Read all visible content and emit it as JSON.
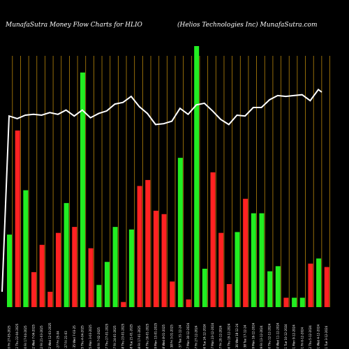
{
  "header": {
    "left": "MunafaSutra  Money Flow  Charts for HLIO",
    "right": "(Helios Technologies Inc) MunafaSutra.com"
  },
  "chart_data": {
    "type": "bar",
    "title": "MunafaSutra  Money Flow  Charts for HLIO",
    "subtitle": "(Helios Technologies Inc) MunafaSutra.com",
    "colors": {
      "up": "#22ee22",
      "down": "#ff2222",
      "line": "#ffffff",
      "grid": "#b8860b",
      "background": "#000000"
    },
    "categories": [
      "20 Fri 27-05-2025",
      "22 Thu 22-04-2025",
      "30 Fri 17-04-2025",
      "32 Wed 7-04-2025",
      "32 Fri 21-03-2025",
      "32 Wed 12-03-2025",
      "6 27 Fri 25-04",
      "6 27 Fri 21-03",
      "6 35 Wed 7-03-25",
      "35 Thu 4-04-2025",
      "35 Mon 3-03-2025",
      "36 Fri 7-02-2025",
      "37 Thu 27-01-2025",
      "37 Fri 24-01-2025",
      "38 Thu 23-01-2025",
      "38 Tue 21-01-2025",
      "38 Fri 17-01-2025",
      "38 Thu 16-01-2025",
      "39 Mon 13-01-2025",
      "38 Wed 8-01-2025",
      "6 38 Fri 3-01-2025",
      "6 37 Tue 31-12-24",
      "37 Mon 30-12-2024",
      "37 Fri 27-12-2024",
      "36 Tue 24-12-2024",
      "37 Mon 23-12-2024",
      "37 Fri 20-12-2024",
      "36 Thu 19-12-2024",
      "6 36 Wed 18-12-24",
      "6 38 Tue 17-12-24",
      "39 Mon 16-12-2024",
      "39 Fri 13-12-2024",
      "40 Thu 12-12-2024",
      "40 Wed 11-12-2024",
      "41 Tue 10-12-2024",
      "41 Mon 9-12-2024",
      "41 Fri 6-12-2024",
      "42 Thu 5-12-2024",
      "41 Wed 4-12-2024",
      "41 Tue 3-12-2024"
    ],
    "series": [
      {
        "values": [
          85,
          207,
          137,
          41,
          73,
          18,
          87,
          122,
          94,
          275,
          69,
          26,
          53,
          94,
          6,
          91,
          142,
          149,
          113,
          109,
          30,
          175,
          9,
          306,
          45,
          158,
          87,
          27,
          88,
          127,
          110,
          110,
          42,
          48,
          11,
          11,
          11,
          51,
          57,
          47
        ],
        "directions": [
          "up",
          "down",
          "up",
          "down",
          "down",
          "down",
          "down",
          "up",
          "down",
          "up",
          "down",
          "up",
          "up",
          "up",
          "down",
          "up",
          "down",
          "down",
          "down",
          "down",
          "down",
          "up",
          "down",
          "up",
          "up",
          "down",
          "down",
          "down",
          "up",
          "down",
          "up",
          "up",
          "up",
          "up",
          "down",
          "up",
          "up",
          "down",
          "up",
          "down"
        ]
      },
      {
        "values": [
          224,
          221,
          225,
          226,
          225,
          228,
          226,
          231,
          224,
          231,
          222,
          227,
          230,
          238,
          240,
          247,
          235,
          227,
          214,
          215,
          218,
          233,
          226,
          237,
          239,
          230,
          220,
          214,
          225,
          224,
          234,
          234,
          243,
          248,
          247,
          248,
          249,
          242,
          255,
          252
        ]
      }
    ],
    "ylim": [
      0,
      360
    ],
    "grid": true
  }
}
